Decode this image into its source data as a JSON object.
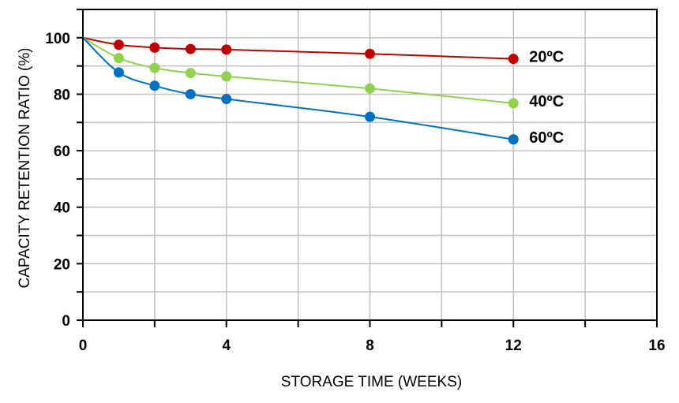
{
  "chart_data": {
    "type": "line",
    "xlabel": "STORAGE TIME (WEEKS)",
    "ylabel": "CAPACITY RETENTION RATIO (%)",
    "xlim": [
      0,
      16
    ],
    "ylim": [
      0,
      110
    ],
    "x_ticks": [
      0,
      4,
      8,
      12,
      16
    ],
    "y_ticks": [
      0,
      20,
      40,
      60,
      80,
      100
    ],
    "x_tick_labels": [
      "0",
      "4",
      "8",
      "12",
      "16"
    ],
    "y_tick_labels": [
      "0",
      "20",
      "40",
      "60",
      "80",
      "100"
    ],
    "grid": true,
    "series": [
      {
        "name": "20ºC",
        "color": "#c00000",
        "x": [
          0,
          1,
          2,
          3,
          4,
          8,
          12
        ],
        "y": [
          100,
          97.5,
          96.5,
          96,
          95.8,
          94.3,
          92.5
        ]
      },
      {
        "name": "40ºC",
        "color": "#92d050",
        "x": [
          0,
          1,
          2,
          3,
          4,
          8,
          12
        ],
        "y": [
          100,
          92.8,
          89.3,
          87.5,
          86.3,
          82,
          76.8
        ]
      },
      {
        "name": "60ºC",
        "color": "#0070c0",
        "x": [
          0,
          1,
          2,
          3,
          4,
          8,
          12
        ],
        "y": [
          100,
          87.7,
          83,
          80,
          78.3,
          72,
          64
        ]
      }
    ]
  }
}
